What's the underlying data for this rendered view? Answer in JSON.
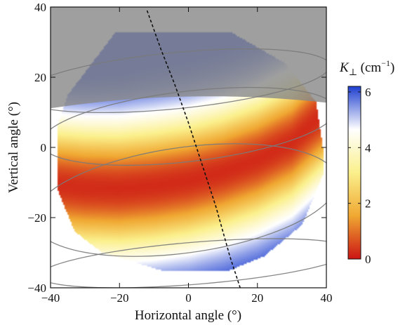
{
  "chart_data": {
    "type": "heatmap",
    "title": "",
    "xlabel": "Horizontal angle (°)",
    "ylabel": "Vertical angle (°)",
    "xlim": [
      -40,
      40
    ],
    "ylim": [
      -40,
      40
    ],
    "x_ticks": [
      -40,
      -20,
      0,
      20,
      40
    ],
    "y_ticks": [
      -40,
      -20,
      0,
      20,
      40
    ],
    "x_tick_labels": [
      "−40",
      "−20",
      "0",
      "20",
      "40"
    ],
    "y_tick_labels": [
      "−40",
      "−20",
      "0",
      "20",
      "40"
    ],
    "colorbar": {
      "label_main": "K",
      "label_sub": "⊥",
      "label_unit": " (cm",
      "label_exp": "−1",
      "label_close": ")",
      "range": [
        0,
        6.2
      ],
      "ticks": [
        0,
        2,
        4,
        6
      ],
      "tick_labels": [
        "0",
        "2",
        "4",
        "6"
      ],
      "colors": [
        "#cc1414",
        "#f0a832",
        "#fbf08c",
        "#ffffff",
        "#1e3fd0"
      ]
    },
    "ridge_minimum_curve": {
      "description_hidden": false,
      "x": [
        -40,
        -30,
        -20,
        -10,
        0,
        10,
        20,
        30,
        36
      ],
      "y": [
        -10.5,
        -11.5,
        -11.8,
        -11.0,
        -9.5,
        -7.0,
        -3.5,
        1.5,
        7.0
      ]
    },
    "dashed_curve": {
      "x": [
        -12,
        -8,
        -4,
        0,
        2,
        4,
        6,
        8,
        10,
        12,
        15
      ],
      "y": [
        39,
        28,
        18,
        7,
        1,
        -5,
        -11,
        -17,
        -24,
        -31,
        -40
      ]
    },
    "shaded_region": {
      "y_min": 12,
      "color": "#8f8f8f"
    },
    "colors": {
      "shade": "#8a8a8a",
      "contour": "#7a7a7a",
      "dashed": "#111111"
    }
  }
}
